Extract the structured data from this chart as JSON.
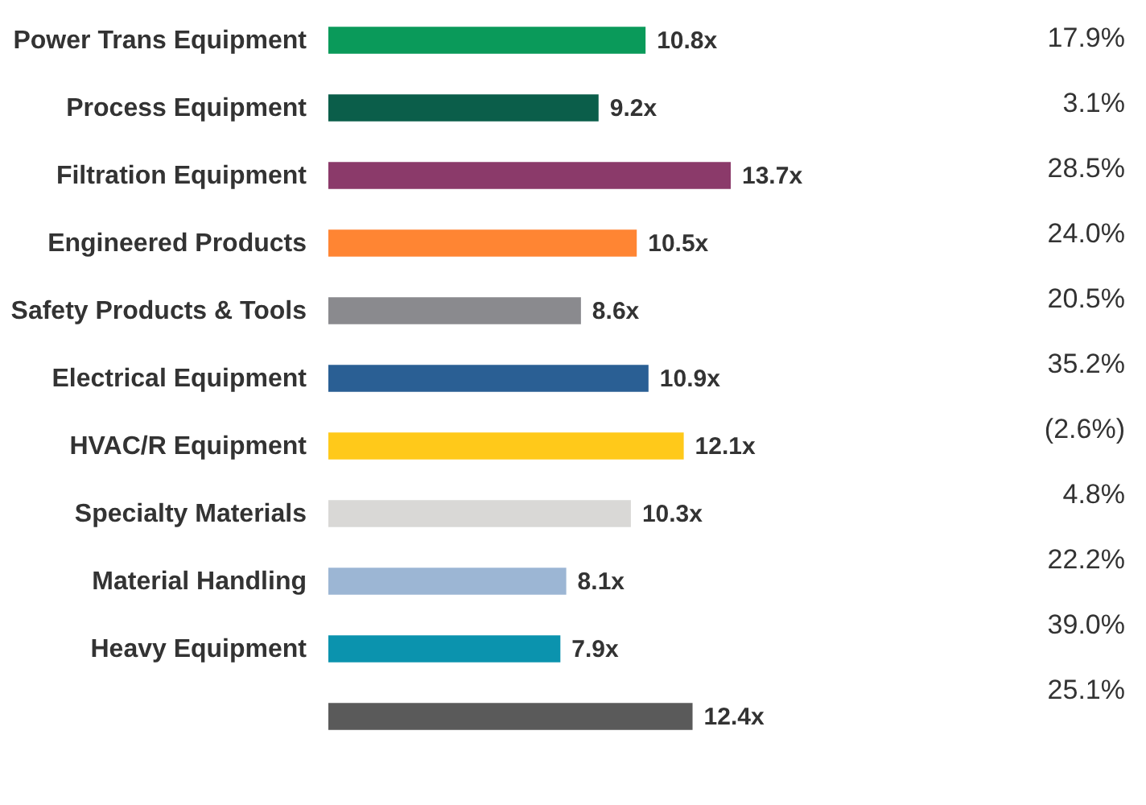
{
  "chart_data": {
    "type": "bar",
    "orientation": "horizontal",
    "categories": [
      "Power Trans Equipment",
      "Process Equipment",
      "Filtration Equipment",
      "Engineered Products",
      "Safety Products & Tools",
      "Electrical Equipment",
      "HVAC/R Equipment",
      "Specialty Materials",
      "Material Handling",
      "Heavy Equipment",
      null
    ],
    "values": [
      10.8,
      9.2,
      13.7,
      10.5,
      8.6,
      10.9,
      12.1,
      10.3,
      8.1,
      7.9,
      12.4
    ],
    "value_labels": [
      "10.8x",
      "9.2x",
      "13.7x",
      "10.5x",
      "8.6x",
      "10.9x",
      "12.1x",
      "10.3x",
      "8.1x",
      "7.9x",
      "12.4x"
    ],
    "colors": [
      "#0a9a5a",
      "#0b5e4a",
      "#8b3a6a",
      "#ff8533",
      "#8a8a8e",
      "#2a5f94",
      "#ffc91a",
      "#d9d8d6",
      "#9cb6d4",
      "#0b93ae",
      "#5a5a5a"
    ],
    "annotations": [
      "17.9%",
      "3.1%",
      "28.5%",
      "24.0%",
      "20.5%",
      "35.2%",
      "(2.6%)",
      "4.8%",
      "22.2%",
      "39.0%",
      "25.1%"
    ]
  }
}
